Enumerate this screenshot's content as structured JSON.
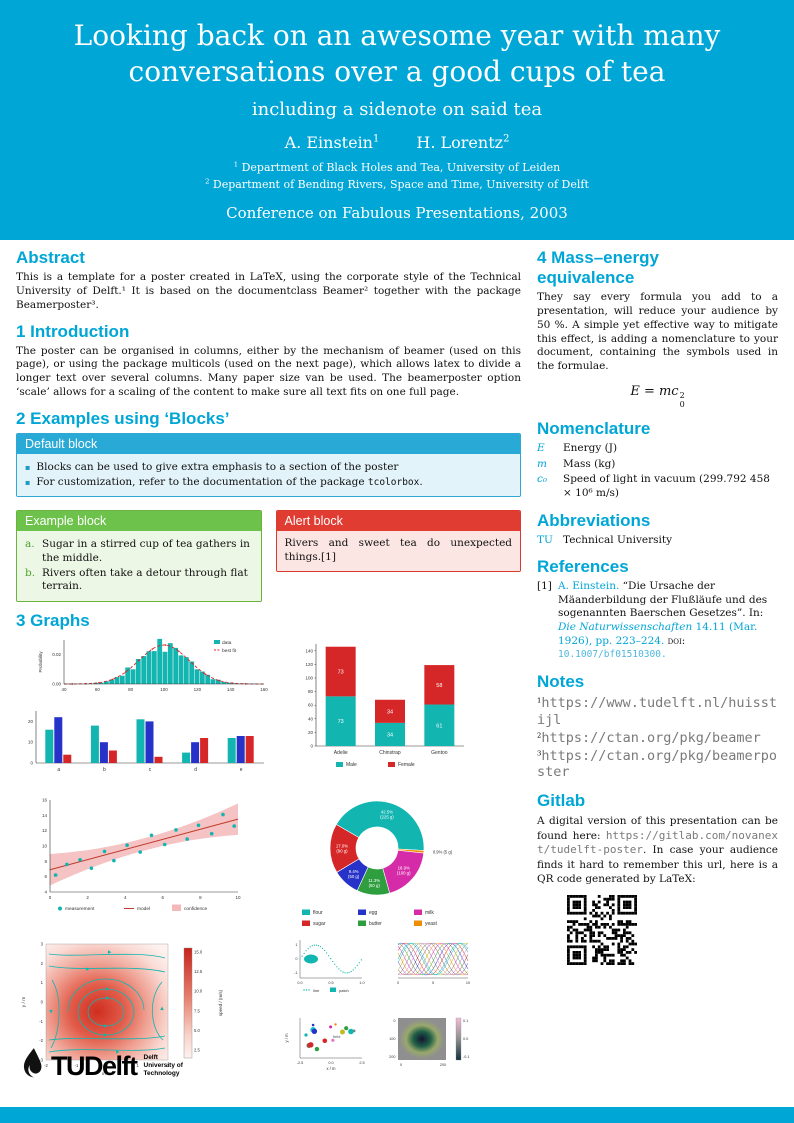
{
  "colors": {
    "accent": "#00A6D6",
    "chart_teal": "#12b5b0",
    "chart_red": "#d62728",
    "chart_blue": "#2632c8",
    "block_green": "#6CC24A",
    "alert_red": "#E03C31"
  },
  "header": {
    "title": "Looking back on an awesome year with many conversations over a good cups of tea",
    "subtitle": "including a sidenote on said tea",
    "authors": [
      {
        "name": "A. Einstein",
        "sup": "1"
      },
      {
        "name": "H. Lorentz",
        "sup": "2"
      }
    ],
    "affiliations": [
      {
        "sup": "1",
        "text": "Department of Black Holes and Tea, University of Leiden"
      },
      {
        "sup": "2",
        "text": "Department of Bending Rivers, Space and Time, University of Delft"
      }
    ],
    "conference": "Conference on Fabulous Presentations, 2003"
  },
  "abstract": {
    "heading": "Abstract",
    "text": "This is a template for a poster created in LaTeX, using the corporate style of the Technical University of Delft.¹ It is based on the documentclass Beamer² together with the package Beamerposter³."
  },
  "introduction": {
    "heading": "1 Introduction",
    "text": "The poster can be organised in columns, either by the mechanism of beamer (used on this page), or using the package multicols (used on the next page), which allows latex to divide a longer text over several columns. Many paper size van be used. The beamerposter option ‘scale’ allows for a scaling of the content to make sure all text fits on one full page."
  },
  "blocks": {
    "heading": "2 Examples using ‘Blocks’",
    "default_block": {
      "title": "Default block",
      "item1": "Blocks can be used to give extra emphasis to a section of the poster",
      "item2_text": "For customization, refer to the documentation of the package ",
      "item2_code": "tcolorbox",
      "item2_end": "."
    },
    "example_block": {
      "title": "Example block",
      "items": [
        {
          "label": "a.",
          "text": "Sugar in a stirred cup of tea gathers in the middle."
        },
        {
          "label": "b.",
          "text": "Rivers often take a detour through flat terrain."
        }
      ]
    },
    "alert_block": {
      "title": "Alert block",
      "text": "Rivers and sweet tea do unexpected things.[1]"
    }
  },
  "graphs": {
    "heading": "3 Graphs"
  },
  "mass_energy": {
    "heading": "4 Mass–energy equivalence",
    "text": "They say every formula you add to a presentation, will reduce your audience by 50 %. A simple yet effective way to mitigate this effect, is adding a nomenclature to your document, containing the symbols used in the formulae.",
    "formula": {
      "lhs": "E",
      "eq": " = ",
      "base": "mc",
      "sup": "2",
      "sub": "0"
    }
  },
  "nomenclature": {
    "heading": "Nomenclature",
    "rows": [
      {
        "symbol": "E",
        "desc": "Energy (J)"
      },
      {
        "symbol": "m",
        "desc": "Mass (kg)"
      },
      {
        "symbol": "c₀",
        "desc": "Speed of light in vacuum (299.792 458 × 10⁶ m/s)"
      }
    ]
  },
  "abbreviations": {
    "heading": "Abbreviations",
    "rows": [
      {
        "abbr": "TU",
        "desc": "Technical University"
      }
    ]
  },
  "references": {
    "heading": "References",
    "items": [
      {
        "label": "[1]",
        "author": "A. Einstein.",
        "title": " “Die Ursache der Mäanderbildung der Flußläufe und des sogenannten Baerschen Gesetzes”. In: ",
        "journal": "Die Naturwissenschaften",
        "detail": " 14.11 (Mar. 1926), pp. 223–224. ",
        "doi_label": "doi: ",
        "doi": "10.1007/bf01510300."
      }
    ]
  },
  "notes": {
    "heading": "Notes",
    "items": [
      {
        "sup": "1",
        "url": "https://www.tudelft.nl/huisstijl"
      },
      {
        "sup": "2",
        "url": "https://ctan.org/pkg/beamer"
      },
      {
        "sup": "3",
        "url": "https://ctan.org/pkg/beamerposter"
      }
    ]
  },
  "gitlab": {
    "heading": "Gitlab",
    "text1": "A digital version of this presentation can be found here: ",
    "url": "https://gitlab.com/novanext/tudelft-poster",
    "text2": ". In case your audience finds it hard to remember this url, here is a QR code generated by LaTeX:"
  },
  "logo": {
    "name": "TUDelft",
    "sub1": "Delft",
    "sub2": "University of",
    "sub3": "Technology"
  },
  "chart_data": {
    "histogram": {
      "type": "bar",
      "ylabel": "Probability",
      "xticks": [
        40,
        60,
        80,
        100,
        120,
        140,
        160
      ],
      "yticks": [
        0.0,
        0.02
      ],
      "distribution": {
        "mean": 100,
        "std": 15
      },
      "legend": [
        {
          "label": "data",
          "color": "#12b5b0"
        },
        {
          "label": "best fit",
          "color": "#d62728"
        }
      ]
    },
    "grouped_bars": {
      "type": "bar",
      "categories": [
        "a",
        "b",
        "c",
        "d",
        "e"
      ],
      "yticks": [
        0,
        10,
        20
      ],
      "series": [
        {
          "color": "#12b5b0",
          "values": [
            16,
            18,
            21,
            5,
            12
          ]
        },
        {
          "color": "#2632c8",
          "values": [
            22,
            10,
            20,
            10,
            13
          ]
        },
        {
          "color": "#d62728",
          "values": [
            4,
            6,
            3,
            12,
            13
          ]
        }
      ]
    },
    "penguins": {
      "type": "bar",
      "stacked": true,
      "categories": [
        "Adelie",
        "Chinstrap",
        "Gentoo"
      ],
      "yticks": [
        0,
        20,
        40,
        60,
        80,
        100,
        120,
        140
      ],
      "series": [
        {
          "name": "Male",
          "color": "#12b5b0",
          "values": [
            73,
            34,
            61
          ]
        },
        {
          "name": "Female",
          "color": "#d62728",
          "values": [
            73,
            34,
            58
          ]
        }
      ]
    },
    "regression": {
      "type": "scatter",
      "xlim": [
        0,
        10
      ],
      "ylim": [
        4,
        16
      ],
      "xticks": [
        0,
        2,
        4,
        6,
        8,
        10
      ],
      "yticks": [
        4,
        6,
        8,
        10,
        12,
        14,
        16
      ],
      "points": [
        [
          0.3,
          6.2
        ],
        [
          0.9,
          7.6
        ],
        [
          1.6,
          8.2
        ],
        [
          2.2,
          7.1
        ],
        [
          2.9,
          9.3
        ],
        [
          3.4,
          8.1
        ],
        [
          4.1,
          10.1
        ],
        [
          4.8,
          9.2
        ],
        [
          5.4,
          11.4
        ],
        [
          6.1,
          10.2
        ],
        [
          6.7,
          12.1
        ],
        [
          7.3,
          10.9
        ],
        [
          7.9,
          12.7
        ],
        [
          8.6,
          11.6
        ],
        [
          9.2,
          14.1
        ],
        [
          9.8,
          12.6
        ]
      ],
      "model": {
        "intercept": 6.9,
        "slope": 0.66
      },
      "legend": [
        {
          "label": "measurement",
          "color": "#12b5b0"
        },
        {
          "label": "model",
          "color": "#c0392b"
        },
        {
          "label": "confidence",
          "color": "#f3b9b9"
        }
      ]
    },
    "ingredients": {
      "type": "pie",
      "donut": true,
      "slices": [
        {
          "label": "flour",
          "pct": 42.5,
          "weight": "225 g",
          "color": "#12b5b0"
        },
        {
          "label": "yeast",
          "pct": 0.9,
          "weight": "5 g",
          "color": "#f08c00"
        },
        {
          "label": "milk",
          "pct": 18.9,
          "weight": "100 g",
          "color": "#d62ba8"
        },
        {
          "label": "butter",
          "pct": 11.3,
          "weight": "60 g",
          "color": "#2e9e3f"
        },
        {
          "label": "egg",
          "pct": 9.4,
          "weight": "50 g",
          "color": "#2632c8"
        },
        {
          "label": "sugar",
          "pct": 17.0,
          "weight": "90 g",
          "color": "#d62728"
        }
      ],
      "legend_order": [
        "flour",
        "egg",
        "milk",
        "sugar",
        "butter",
        "yeast"
      ]
    },
    "streamplot": {
      "type": "heatmap",
      "xlabel": "x / m",
      "ylabel": "y / m",
      "xticks": [
        -2,
        -1,
        0,
        1,
        2
      ],
      "yticks": [
        -3,
        -2,
        -1,
        0,
        1,
        2,
        3
      ],
      "colorbar_label": "speed / (m/s)",
      "colorbar_ticks": [
        2.5,
        5.0,
        7.5,
        10.0,
        12.5,
        15.0
      ]
    },
    "line_patch": {
      "type": "line",
      "xticks": [
        "0.0",
        "0.5",
        "1.0"
      ],
      "yticks": [
        -1,
        0,
        1
      ],
      "legend": [
        {
          "label": "line",
          "color": "#12b5b0"
        },
        {
          "label": "patch",
          "color": "#12b5b0"
        }
      ]
    },
    "multilines": {
      "type": "line",
      "xticks": [
        0,
        5,
        10
      ],
      "n_lines": 12
    },
    "scatter_field": {
      "type": "scatter",
      "xlabel": "x / m",
      "ylabel": "y / m",
      "xticks": [
        "-2.5",
        "0.0",
        "2.5"
      ],
      "annotation": "field"
    },
    "image_blob": {
      "type": "heatmap",
      "xticks": [
        0,
        200
      ],
      "yticks": [
        0,
        100,
        200
      ],
      "colorbar_ticks": [
        0.1,
        0.0,
        -0.1
      ]
    }
  }
}
